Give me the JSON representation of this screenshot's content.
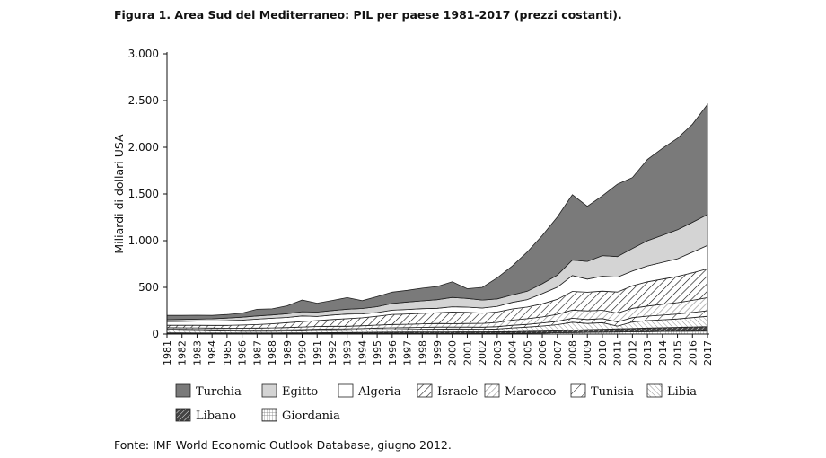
{
  "caption": "Figura 1.  Area Sud del Mediterraneo: PIL per paese 1981-2017 (prezzi costanti).",
  "source": "Fonte:  IMF World Economic Outlook Database, giugno 2012.",
  "chart_data": {
    "type": "area",
    "stacked": true,
    "title": "",
    "xlabel": "",
    "ylabel": "Miliardi di dollari USA",
    "ylim": [
      0,
      3000
    ],
    "yticks": [
      0,
      500,
      1000,
      1500,
      2000,
      2500,
      3000
    ],
    "ytick_labels": [
      "0",
      "500",
      "1.000",
      "1.500",
      "2.000",
      "2.500",
      "3.000"
    ],
    "grid": false,
    "legend_position": "bottom",
    "x": [
      "1981",
      "1982",
      "1983",
      "1984",
      "1985",
      "1986",
      "1987",
      "1988",
      "1989",
      "1990",
      "1991",
      "1992",
      "1993",
      "1994",
      "1995",
      "1996",
      "1997",
      "1998",
      "1999",
      "2000",
      "2001",
      "2002",
      "2003",
      "2004",
      "2005",
      "2006",
      "2007",
      "2008",
      "2009",
      "2010",
      "2011",
      "2012",
      "2013",
      "2014",
      "2015",
      "2016",
      "2017"
    ],
    "series": [
      {
        "name": "Giordania",
        "pattern": "grid",
        "values": [
          8,
          8,
          8,
          8,
          8,
          8,
          8,
          8,
          8,
          8,
          8,
          8,
          8,
          8,
          8,
          8,
          8,
          8,
          8,
          8,
          8,
          8,
          8,
          8,
          10,
          12,
          14,
          16,
          18,
          20,
          22,
          24,
          26,
          28,
          30,
          32,
          34
        ]
      },
      {
        "name": "Libano",
        "pattern": "diagonal-dense",
        "values": [
          5,
          5,
          4,
          4,
          4,
          4,
          4,
          4,
          5,
          5,
          6,
          7,
          8,
          10,
          12,
          13,
          14,
          15,
          15,
          15,
          16,
          16,
          17,
          18,
          20,
          20,
          22,
          26,
          30,
          32,
          34,
          36,
          38,
          40,
          42,
          44,
          46
        ]
      },
      {
        "name": "Libia",
        "pattern": "diagonal-fine",
        "values": [
          30,
          28,
          26,
          24,
          22,
          20,
          20,
          20,
          20,
          22,
          25,
          25,
          25,
          25,
          26,
          26,
          27,
          28,
          30,
          32,
          30,
          28,
          30,
          40,
          45,
          55,
          65,
          85,
          65,
          70,
          30,
          70,
          80,
          85,
          90,
          100,
          110
        ]
      },
      {
        "name": "Tunisia",
        "pattern": "diagonal-wide",
        "values": [
          10,
          10,
          11,
          11,
          11,
          11,
          12,
          12,
          12,
          13,
          14,
          15,
          15,
          16,
          18,
          20,
          20,
          21,
          22,
          20,
          21,
          22,
          25,
          28,
          29,
          32,
          36,
          42,
          43,
          43,
          44,
          46,
          48,
          50,
          53,
          56,
          60
        ]
      },
      {
        "name": "Marocco",
        "pattern": "diagonal-light",
        "values": [
          16,
          16,
          17,
          17,
          18,
          20,
          20,
          22,
          25,
          28,
          29,
          29,
          28,
          30,
          32,
          36,
          36,
          38,
          38,
          37,
          38,
          40,
          45,
          55,
          60,
          65,
          75,
          88,
          92,
          90,
          95,
          100,
          108,
          115,
          122,
          130,
          140
        ]
      },
      {
        "name": "Israele",
        "pattern": "diagonal-medium",
        "values": [
          25,
          27,
          28,
          29,
          30,
          34,
          38,
          45,
          52,
          58,
          62,
          72,
          80,
          85,
          95,
          108,
          110,
          112,
          115,
          125,
          120,
          110,
          112,
          120,
          125,
          140,
          160,
          200,
          200,
          205,
          225,
          240,
          260,
          270,
          280,
          295,
          310
        ]
      },
      {
        "name": "Algeria",
        "pattern": "white",
        "values": [
          40,
          42,
          44,
          46,
          50,
          52,
          58,
          58,
          56,
          60,
          44,
          48,
          50,
          42,
          40,
          45,
          48,
          50,
          48,
          55,
          55,
          55,
          60,
          70,
          80,
          110,
          130,
          170,
          140,
          160,
          160,
          160,
          170,
          180,
          190,
          220,
          250
        ]
      },
      {
        "name": "Egitto",
        "pattern": "light-gray",
        "values": [
          20,
          21,
          22,
          24,
          28,
          32,
          34,
          36,
          40,
          45,
          48,
          48,
          52,
          58,
          62,
          72,
          80,
          84,
          92,
          100,
          94,
          85,
          80,
          80,
          90,
          105,
          130,
          165,
          190,
          220,
          220,
          240,
          270,
          290,
          310,
          320,
          330
        ]
      },
      {
        "name": "Turchia",
        "pattern": "dark-gray",
        "values": [
          46,
          43,
          42,
          37,
          39,
          44,
          71,
          65,
          85,
          125,
          95,
          108,
          124,
          84,
          108,
          121,
          125,
          135,
          142,
          168,
          104,
          136,
          226,
          310,
          421,
          518,
          622,
          700,
          590,
          640,
          775,
          760,
          870,
          930,
          980,
          1050,
          1180
        ]
      }
    ],
    "legend_order": [
      "Turchia",
      "Egitto",
      "Algeria",
      "Israele",
      "Marocco",
      "Tunisia",
      "Libia",
      "Libano",
      "Giordania"
    ]
  }
}
